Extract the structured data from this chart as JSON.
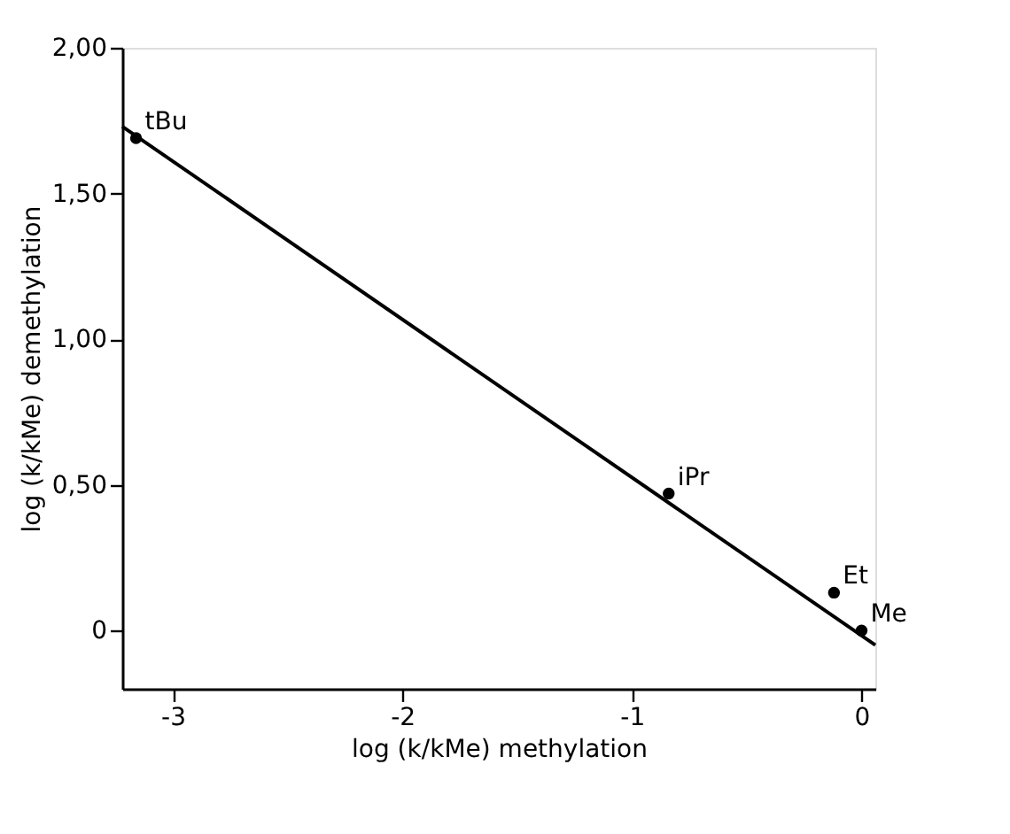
{
  "chart_data": {
    "type": "scatter",
    "xlabel": "log (k/kMe)  methylation",
    "ylabel": "log (k/kMe)  demethylation",
    "series": [
      {
        "color": "#000000",
        "x": [
          -3.16,
          -0.84,
          -0.12,
          0
        ],
        "values": [
          1.69,
          0.47,
          0.13,
          0
        ],
        "marker": "circle"
      },
      {
        "type": "line",
        "color": "#000000",
        "x": [
          -3.22,
          0.06
        ],
        "values": [
          1.73,
          -0.05
        ],
        "line_style": "solid"
      }
    ],
    "annotations": [
      {
        "text": "tBu",
        "x": -3.16,
        "y": 1.69
      },
      {
        "text": "iPr",
        "x": -0.84,
        "y": 0.47
      },
      {
        "text": "Et",
        "x": -0.12,
        "y": 0.13
      },
      {
        "text": "Me",
        "x": 0,
        "y": 0
      }
    ],
    "xlim": [
      -3.22,
      0.06
    ],
    "xticks": [
      -3,
      -2,
      -1,
      0
    ],
    "ylim": [
      -0.2,
      2.0
    ],
    "yticks": [
      {
        "value": 0,
        "label": "0"
      },
      {
        "value": 0.5,
        "label": "0,50"
      },
      {
        "value": 1.0,
        "label": "1,00"
      },
      {
        "value": 1.5,
        "label": "1,50"
      },
      {
        "value": 2.0,
        "label": "2,00"
      }
    ],
    "grid": false
  }
}
